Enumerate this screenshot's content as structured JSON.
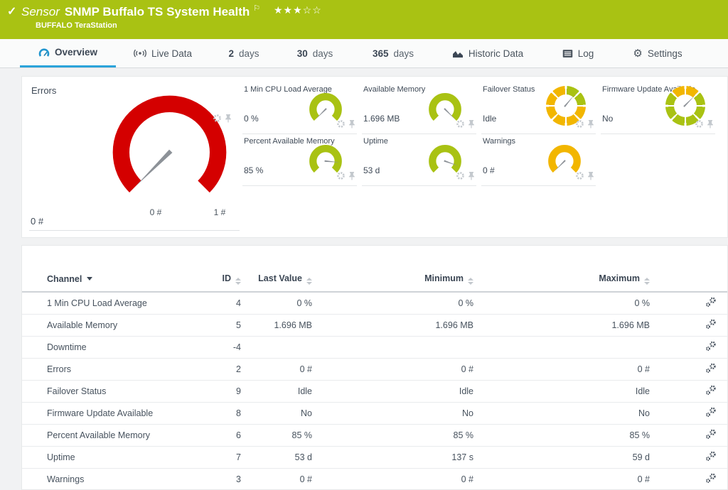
{
  "header": {
    "check": "✓",
    "kind": "Sensor",
    "title": "SNMP Buffalo TS System Health",
    "flag": "⚐",
    "stars_filled": "★★★",
    "stars_empty": "☆☆",
    "device": "BUFFALO TeraStation"
  },
  "tabs": [
    {
      "label": "Overview"
    },
    {
      "label": "Live Data"
    },
    {
      "num": "2",
      "label": "days"
    },
    {
      "num": "30",
      "label": "days"
    },
    {
      "num": "365",
      "label": "days"
    },
    {
      "label": "Historic Data"
    },
    {
      "label": "Log"
    },
    {
      "label": "Settings"
    }
  ],
  "colors": {
    "brand_green": "#a9c213",
    "accent_blue": "#2ba3da",
    "gauge_red": "#d40000",
    "gauge_amber": "#f2b600",
    "needle_gray": "#8d9298"
  },
  "gauges": {
    "main": {
      "label": "Errors",
      "value": "0 #",
      "scale_min": "0 #",
      "scale_max": "1 #",
      "color": "#d40000",
      "needle_deg": -135
    },
    "small": [
      {
        "label": "1 Min CPU Load Average",
        "value": "0 %",
        "type": "arc",
        "color": "#a9c213",
        "needle_deg": -135
      },
      {
        "label": "Available Memory",
        "value": "1.696 MB",
        "type": "arc",
        "color": "#a9c213",
        "needle_deg": 135
      },
      {
        "label": "Failover Status",
        "value": "Idle",
        "type": "ring",
        "needle_deg": 40,
        "segments": [
          "#a9c213",
          "#a9c213",
          "#f2b600",
          "#f2b600",
          "#f2b600",
          "#f2b600",
          "#f2b600",
          "#f2b600"
        ]
      },
      {
        "label": "Firmware Update Available",
        "value": "No",
        "type": "ring",
        "needle_deg": 45,
        "segments": [
          "#f2b600",
          "#a9c213",
          "#a9c213",
          "#a9c213",
          "#a9c213",
          "#a9c213",
          "#a9c213",
          "#f2b600"
        ]
      },
      {
        "label": "Percent Available Memory",
        "value": "85 %",
        "type": "arc",
        "color": "#a9c213",
        "needle_deg": 95
      },
      {
        "label": "Uptime",
        "value": "53 d",
        "type": "arc",
        "color": "#a9c213",
        "needle_deg": 110
      },
      {
        "label": "Warnings",
        "value": "0 #",
        "type": "arc",
        "color": "#f2b600",
        "needle_deg": -135
      }
    ]
  },
  "table": {
    "columns": {
      "channel": "Channel",
      "id": "ID",
      "last": "Last Value",
      "min": "Minimum",
      "max": "Maximum"
    },
    "rows": [
      {
        "channel": "1 Min CPU Load Average",
        "id": "4",
        "last": "0 %",
        "min": "0 %",
        "max": "0 %"
      },
      {
        "channel": "Available Memory",
        "id": "5",
        "last": "1.696 MB",
        "min": "1.696 MB",
        "max": "1.696 MB"
      },
      {
        "channel": "Downtime",
        "id": "-4",
        "last": "",
        "min": "",
        "max": ""
      },
      {
        "channel": "Errors",
        "id": "2",
        "last": "0 #",
        "min": "0 #",
        "max": "0 #"
      },
      {
        "channel": "Failover Status",
        "id": "9",
        "last": "Idle",
        "min": "Idle",
        "max": "Idle"
      },
      {
        "channel": "Firmware Update Available",
        "id": "8",
        "last": "No",
        "min": "No",
        "max": "No"
      },
      {
        "channel": "Percent Available Memory",
        "id": "6",
        "last": "85 %",
        "min": "85 %",
        "max": "85 %"
      },
      {
        "channel": "Uptime",
        "id": "7",
        "last": "53 d",
        "min": "137 s",
        "max": "59 d"
      },
      {
        "channel": "Warnings",
        "id": "3",
        "last": "0 #",
        "min": "0 #",
        "max": "0 #"
      }
    ]
  }
}
